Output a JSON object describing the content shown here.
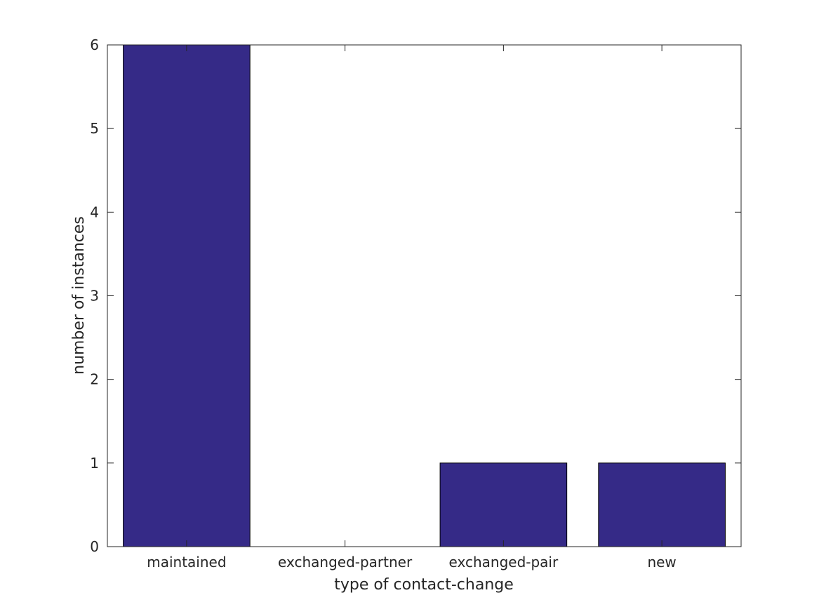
{
  "chart_data": {
    "type": "bar",
    "categories": [
      "maintained",
      "exchanged-partner",
      "exchanged-pair",
      "new"
    ],
    "values": [
      6,
      0,
      1,
      1
    ],
    "title": "",
    "xlabel": "type of contact-change",
    "ylabel": "number of instances",
    "ylim": [
      0,
      6
    ],
    "yticks": [
      0,
      1,
      2,
      3,
      4,
      5,
      6
    ],
    "grid": false,
    "legend": "none",
    "bar_color": "#352a87",
    "edge_color": "#000000",
    "axis_color": "#262626",
    "background": "#ffffff"
  }
}
